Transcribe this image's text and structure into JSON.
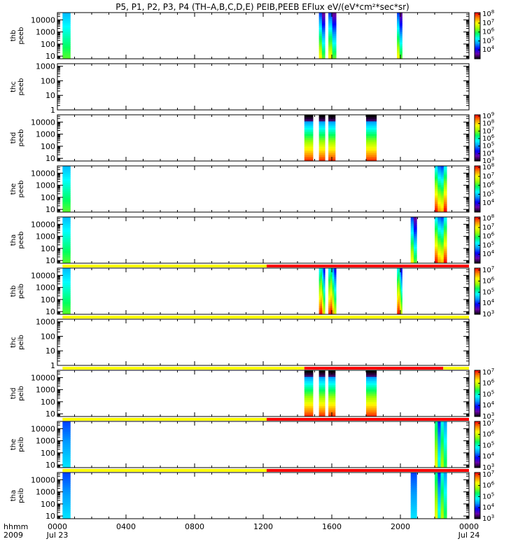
{
  "chart_data": {
    "type": "heatmap",
    "title": "P5, P1, P2, P3, P4 (TH–A,B,C,D,E) PEIB,PEEB EFlux eV/(eV*cm²*sec*sr)",
    "colors": {
      "flag_yellow": "#ffff00",
      "flag_red": "#ff0000",
      "colorbar": [
        "#000000",
        "#6a00a8",
        "#0000ff",
        "#0098ff",
        "#00ffff",
        "#00ff60",
        "#a0ff00",
        "#ffff00",
        "#ff8c00",
        "#ff0000"
      ]
    },
    "x_axis": {
      "row_label_1": "hhmm",
      "row_label_2": "2009",
      "range_hours": [
        0,
        24
      ],
      "ticks": [
        {
          "h": 0,
          "label": "0000",
          "sub": "Jul 23"
        },
        {
          "h": 4,
          "label": "0400",
          "sub": ""
        },
        {
          "h": 8,
          "label": "0800",
          "sub": ""
        },
        {
          "h": 12,
          "label": "1200",
          "sub": ""
        },
        {
          "h": 16,
          "label": "1600",
          "sub": ""
        },
        {
          "h": 20,
          "label": "2000",
          "sub": ""
        },
        {
          "h": 24,
          "label": "0000",
          "sub": "Jul 24"
        }
      ]
    },
    "panels": [
      {
        "probe": "thb",
        "product": "peeb",
        "ylabel": "thb\npeeb",
        "yscale": "log",
        "ylim": [
          6,
          40000
        ],
        "yticks": [
          {
            "v": 10,
            "label": "10"
          },
          {
            "v": 100,
            "label": "100"
          },
          {
            "v": 1000,
            "label": "1000"
          },
          {
            "v": 10000,
            "label": "10000"
          }
        ],
        "colorbar": {
          "zlim": [
            1000,
            150000000
          ],
          "ticks": [
            {
              "v": 10000,
              "b": "10",
              "e": "4"
            },
            {
              "v": 100000,
              "b": "10",
              "e": "5"
            },
            {
              "v": 1000000,
              "b": "10",
              "e": "6"
            },
            {
              "v": 10000000,
              "b": "10",
              "e": "7"
            },
            {
              "v": 100000000,
              "b": "10",
              "e": "8"
            }
          ]
        },
        "flags": [],
        "data_intervals": [
          {
            "start": 0.3,
            "end": 0.75,
            "kind": "edge"
          },
          {
            "start": 15.25,
            "end": 15.6,
            "kind": "electron"
          },
          {
            "start": 15.8,
            "end": 16.25,
            "kind": "electron"
          },
          {
            "start": 19.8,
            "end": 20.1,
            "kind": "electron"
          }
        ]
      },
      {
        "probe": "thc",
        "product": "peeb",
        "ylabel": "thc\npeeb",
        "yscale": "log",
        "ylim": [
          1,
          1500
        ],
        "yticks": [
          {
            "v": 1,
            "label": "1"
          },
          {
            "v": 10,
            "label": "10"
          },
          {
            "v": 100,
            "label": "100"
          },
          {
            "v": 1000,
            "label": "1000"
          }
        ],
        "colorbar": null,
        "flags": [],
        "data_intervals": []
      },
      {
        "probe": "thd",
        "product": "peeb",
        "ylabel": "thd\npeeb",
        "yscale": "log",
        "ylim": [
          6,
          40000
        ],
        "yticks": [
          {
            "v": 10,
            "label": "10"
          },
          {
            "v": 100,
            "label": "100"
          },
          {
            "v": 1000,
            "label": "1000"
          },
          {
            "v": 10000,
            "label": "10000"
          }
        ],
        "colorbar": {
          "zlim": [
            1000,
            1500000000
          ],
          "ticks": [
            {
              "v": 1000,
              "b": "10",
              "e": "3"
            },
            {
              "v": 10000,
              "b": "10",
              "e": "4"
            },
            {
              "v": 100000,
              "b": "10",
              "e": "5"
            },
            {
              "v": 1000000,
              "b": "10",
              "e": "6"
            },
            {
              "v": 10000000,
              "b": "10",
              "e": "7"
            },
            {
              "v": 100000000,
              "b": "10",
              "e": "8"
            },
            {
              "v": 1000000000,
              "b": "10",
              "e": "9"
            }
          ]
        },
        "flags": [],
        "data_intervals": [
          {
            "start": 14.4,
            "end": 14.9,
            "kind": "hot"
          },
          {
            "start": 15.25,
            "end": 15.6,
            "kind": "hot"
          },
          {
            "start": 15.8,
            "end": 16.2,
            "kind": "hot"
          },
          {
            "start": 18.0,
            "end": 18.6,
            "kind": "hot"
          }
        ]
      },
      {
        "probe": "the",
        "product": "peeb",
        "ylabel": "the\npeeb",
        "yscale": "log",
        "ylim": [
          6,
          40000
        ],
        "yticks": [
          {
            "v": 10,
            "label": "10"
          },
          {
            "v": 100,
            "label": "100"
          },
          {
            "v": 1000,
            "label": "1000"
          },
          {
            "v": 10000,
            "label": "10000"
          }
        ],
        "colorbar": {
          "zlim": [
            1000,
            150000000
          ],
          "ticks": [
            {
              "v": 10000,
              "b": "10",
              "e": "4"
            },
            {
              "v": 100000,
              "b": "10",
              "e": "5"
            },
            {
              "v": 1000000,
              "b": "10",
              "e": "6"
            },
            {
              "v": 10000000,
              "b": "10",
              "e": "7"
            },
            {
              "v": 100000000,
              "b": "10",
              "e": "8"
            }
          ]
        },
        "flags": [],
        "data_intervals": [
          {
            "start": 0.3,
            "end": 0.75,
            "kind": "edge"
          },
          {
            "start": 22.0,
            "end": 22.7,
            "kind": "hot_mixed"
          }
        ]
      },
      {
        "probe": "tha",
        "product": "peeb",
        "ylabel": "tha\npeeb",
        "yscale": "log",
        "ylim": [
          6,
          40000
        ],
        "yticks": [
          {
            "v": 10,
            "label": "10"
          },
          {
            "v": 100,
            "label": "100"
          },
          {
            "v": 1000,
            "label": "1000"
          },
          {
            "v": 10000,
            "label": "10000"
          }
        ],
        "colorbar": {
          "zlim": [
            1000,
            150000000
          ],
          "ticks": [
            {
              "v": 10000,
              "b": "10",
              "e": "4"
            },
            {
              "v": 100000,
              "b": "10",
              "e": "5"
            },
            {
              "v": 1000000,
              "b": "10",
              "e": "6"
            },
            {
              "v": 10000000,
              "b": "10",
              "e": "7"
            },
            {
              "v": 100000000,
              "b": "10",
              "e": "8"
            }
          ]
        },
        "flags": [],
        "data_intervals": [
          {
            "start": 0.3,
            "end": 0.75,
            "kind": "edge"
          },
          {
            "start": 20.6,
            "end": 20.95,
            "kind": "electron"
          },
          {
            "start": 22.0,
            "end": 22.7,
            "kind": "hot_mixed"
          }
        ]
      },
      {
        "probe": "thb",
        "product": "peib",
        "ylabel": "thb\npeib",
        "yscale": "log",
        "ylim": [
          6,
          40000
        ],
        "yticks": [
          {
            "v": 10,
            "label": "10"
          },
          {
            "v": 100,
            "label": "100"
          },
          {
            "v": 1000,
            "label": "1000"
          },
          {
            "v": 10000,
            "label": "10000"
          }
        ],
        "colorbar": {
          "zlim": [
            1000,
            15000000
          ],
          "ticks": [
            {
              "v": 1000,
              "b": "10",
              "e": "3"
            },
            {
              "v": 10000,
              "b": "10",
              "e": "4"
            },
            {
              "v": 100000,
              "b": "10",
              "e": "5"
            },
            {
              "v": 1000000,
              "b": "10",
              "e": "6"
            },
            {
              "v": 10000000,
              "b": "10",
              "e": "7"
            }
          ]
        },
        "flags": [
          {
            "start": 0.3,
            "end": 12.2,
            "color": "yellow"
          },
          {
            "start": 12.2,
            "end": 24,
            "color": "red"
          }
        ],
        "data_intervals": [
          {
            "start": 0.3,
            "end": 0.75,
            "kind": "edge"
          },
          {
            "start": 15.25,
            "end": 15.6,
            "kind": "ion"
          },
          {
            "start": 15.8,
            "end": 16.25,
            "kind": "ion"
          },
          {
            "start": 19.8,
            "end": 20.1,
            "kind": "ion"
          }
        ]
      },
      {
        "probe": "thc",
        "product": "peib",
        "ylabel": "thc\npeib",
        "yscale": "log",
        "ylim": [
          1,
          1500
        ],
        "yticks": [
          {
            "v": 1,
            "label": "1"
          },
          {
            "v": 10,
            "label": "10"
          },
          {
            "v": 100,
            "label": "100"
          },
          {
            "v": 1000,
            "label": "1000"
          }
        ],
        "colorbar": null,
        "flags": [
          {
            "start": 0.3,
            "end": 24,
            "color": "yellow"
          }
        ],
        "data_intervals": []
      },
      {
        "probe": "thd",
        "product": "peib",
        "ylabel": "thd\npeib",
        "yscale": "log",
        "ylim": [
          6,
          40000
        ],
        "yticks": [
          {
            "v": 10,
            "label": "10"
          },
          {
            "v": 100,
            "label": "100"
          },
          {
            "v": 1000,
            "label": "1000"
          },
          {
            "v": 10000,
            "label": "10000"
          }
        ],
        "colorbar": {
          "zlim": [
            1000,
            15000000
          ],
          "ticks": [
            {
              "v": 1000,
              "b": "10",
              "e": "3"
            },
            {
              "v": 10000,
              "b": "10",
              "e": "4"
            },
            {
              "v": 100000,
              "b": "10",
              "e": "5"
            },
            {
              "v": 1000000,
              "b": "10",
              "e": "6"
            },
            {
              "v": 10000000,
              "b": "10",
              "e": "7"
            }
          ]
        },
        "flags": [
          {
            "start": 0.3,
            "end": 14.4,
            "color": "yellow"
          },
          {
            "start": 14.4,
            "end": 22.5,
            "color": "red"
          },
          {
            "start": 22.5,
            "end": 24,
            "color": "yellow"
          }
        ],
        "data_intervals": [
          {
            "start": 14.4,
            "end": 14.9,
            "kind": "hot"
          },
          {
            "start": 15.25,
            "end": 15.6,
            "kind": "hot"
          },
          {
            "start": 15.8,
            "end": 16.2,
            "kind": "hot"
          },
          {
            "start": 18.0,
            "end": 18.6,
            "kind": "hot"
          }
        ]
      },
      {
        "probe": "the",
        "product": "peib",
        "ylabel": "the\npeib",
        "yscale": "log",
        "ylim": [
          6,
          40000
        ],
        "yticks": [
          {
            "v": 10,
            "label": "10"
          },
          {
            "v": 100,
            "label": "100"
          },
          {
            "v": 1000,
            "label": "1000"
          },
          {
            "v": 10000,
            "label": "10000"
          }
        ],
        "colorbar": {
          "zlim": [
            1000,
            15000000
          ],
          "ticks": [
            {
              "v": 1000,
              "b": "10",
              "e": "3"
            },
            {
              "v": 10000,
              "b": "10",
              "e": "4"
            },
            {
              "v": 100000,
              "b": "10",
              "e": "5"
            },
            {
              "v": 1000000,
              "b": "10",
              "e": "6"
            },
            {
              "v": 10000000,
              "b": "10",
              "e": "7"
            }
          ]
        },
        "flags": [
          {
            "start": 0.3,
            "end": 12.2,
            "color": "yellow"
          },
          {
            "start": 12.2,
            "end": 24,
            "color": "red"
          }
        ],
        "data_intervals": [
          {
            "start": 0.3,
            "end": 0.75,
            "kind": "ion_low"
          },
          {
            "start": 22.0,
            "end": 22.7,
            "kind": "ion_mixed"
          }
        ]
      },
      {
        "probe": "tha",
        "product": "peib",
        "ylabel": "tha\npeib",
        "yscale": "log",
        "ylim": [
          6,
          40000
        ],
        "yticks": [
          {
            "v": 10,
            "label": "10"
          },
          {
            "v": 100,
            "label": "100"
          },
          {
            "v": 1000,
            "label": "1000"
          },
          {
            "v": 10000,
            "label": "10000"
          }
        ],
        "colorbar": {
          "zlim": [
            1000,
            15000000
          ],
          "ticks": [
            {
              "v": 1000,
              "b": "10",
              "e": "3"
            },
            {
              "v": 10000,
              "b": "10",
              "e": "4"
            },
            {
              "v": 100000,
              "b": "10",
              "e": "5"
            },
            {
              "v": 1000000,
              "b": "10",
              "e": "6"
            },
            {
              "v": 10000000,
              "b": "10",
              "e": "7"
            }
          ]
        },
        "flags": [
          {
            "start": 0.3,
            "end": 12.2,
            "color": "yellow"
          },
          {
            "start": 12.2,
            "end": 24,
            "color": "red"
          }
        ],
        "data_intervals": [
          {
            "start": 0.3,
            "end": 0.75,
            "kind": "ion_low"
          },
          {
            "start": 20.6,
            "end": 20.95,
            "kind": "ion_low"
          },
          {
            "start": 22.0,
            "end": 22.7,
            "kind": "ion_mixed"
          }
        ]
      }
    ]
  }
}
